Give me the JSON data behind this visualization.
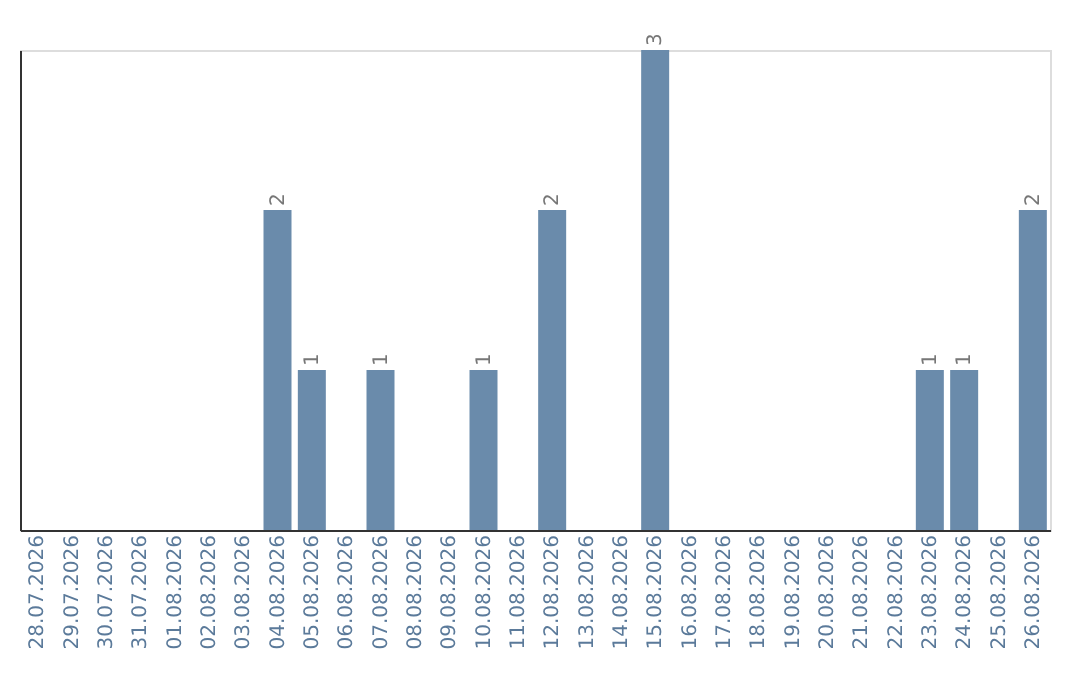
{
  "chart_data": {
    "type": "bar",
    "categories": [
      "28.07.2026",
      "29.07.2026",
      "30.07.2026",
      "31.07.2026",
      "01.08.2026",
      "02.08.2026",
      "03.08.2026",
      "04.08.2026",
      "05.08.2026",
      "06.08.2026",
      "07.08.2026",
      "08.08.2026",
      "09.08.2026",
      "10.08.2026",
      "11.08.2026",
      "12.08.2026",
      "13.08.2026",
      "14.08.2026",
      "15.08.2026",
      "16.08.2026",
      "17.08.2026",
      "18.08.2026",
      "19.08.2026",
      "20.08.2026",
      "21.08.2026",
      "22.08.2026",
      "23.08.2026",
      "24.08.2026",
      "25.08.2026",
      "26.08.2026"
    ],
    "values": [
      0,
      0,
      0,
      0,
      0,
      0,
      0,
      2,
      1,
      0,
      1,
      0,
      0,
      1,
      0,
      2,
      0,
      0,
      3,
      0,
      0,
      0,
      0,
      0,
      0,
      0,
      1,
      1,
      0,
      2
    ],
    "value_labels": [
      null,
      null,
      null,
      null,
      null,
      null,
      null,
      "2",
      "1",
      null,
      "1",
      null,
      null,
      "1",
      null,
      "2",
      null,
      null,
      "3",
      null,
      null,
      null,
      null,
      null,
      null,
      null,
      "1",
      "1",
      null,
      "2"
    ],
    "color": "#6a8bab",
    "grid": false
  }
}
